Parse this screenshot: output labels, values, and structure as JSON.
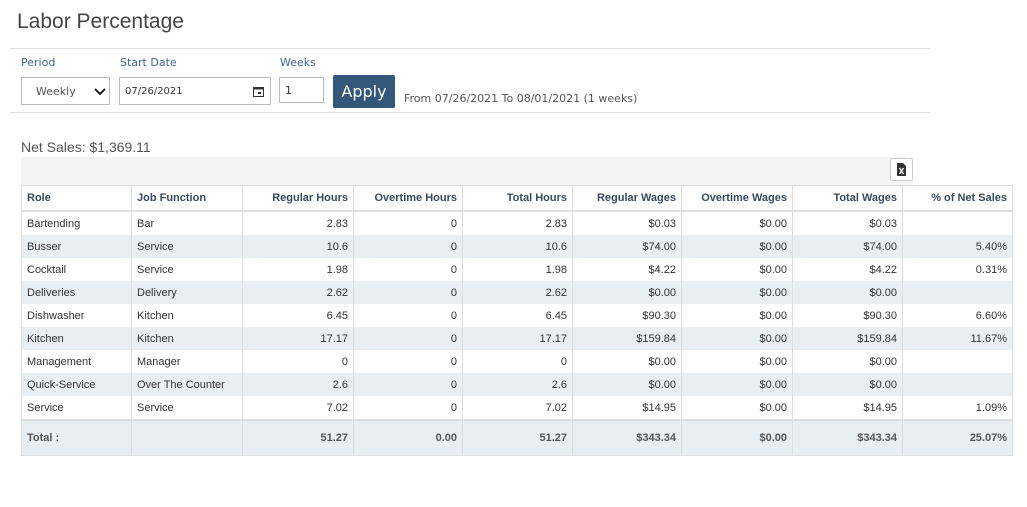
{
  "header": {
    "title": "Labor Percentage"
  },
  "filters": {
    "period_label": "Period",
    "period_value": "Weekly",
    "start_date_label": "Start Date",
    "start_date_value": "07/26/2021",
    "weeks_label": "Weeks",
    "weeks_value": "1",
    "apply_label": "Apply",
    "range_text": "From 07/26/2021 To 08/01/2021 (1 weeks)"
  },
  "net_sales": "Net Sales: $1,369.11",
  "table": {
    "columns": [
      "Role",
      "Job Function",
      "Regular Hours",
      "Overtime Hours",
      "Total Hours",
      "Regular Wages",
      "Overtime Wages",
      "Total Wages",
      "% of Net Sales"
    ],
    "rows": [
      [
        "Bartending",
        "Bar",
        "2.83",
        "0",
        "2.83",
        "$0.03",
        "$0.00",
        "$0.03",
        null
      ],
      [
        "Busser",
        "Service",
        "10.6",
        "0",
        "10.6",
        "$74.00",
        "$0.00",
        "$74.00",
        "5.40%"
      ],
      [
        "Cocktail",
        "Service",
        "1.98",
        "0",
        "1.98",
        "$4.22",
        "$0.00",
        "$4.22",
        "0.31%"
      ],
      [
        "Deliveries",
        "Delivery",
        "2.62",
        "0",
        "2.62",
        "$0.00",
        "$0.00",
        "$0.00",
        null
      ],
      [
        "Dishwasher",
        "Kitchen",
        "6.45",
        "0",
        "6.45",
        "$90.30",
        "$0.00",
        "$90.30",
        "6.60%"
      ],
      [
        "Kitchen",
        "Kitchen",
        "17.17",
        "0",
        "17.17",
        "$159.84",
        "$0.00",
        "$159.84",
        "11.67%"
      ],
      [
        "Management",
        "Manager",
        "0",
        "0",
        "0",
        "$0.00",
        "$0.00",
        "$0.00",
        null
      ],
      [
        "Quick-Service",
        "Over The Counter",
        "2.6",
        "0",
        "2.6",
        "$0.00",
        "$0.00",
        "$0.00",
        null
      ],
      [
        "Service",
        "Service",
        "7.02",
        "0",
        "7.02",
        "$14.95",
        "$0.00",
        "$14.95",
        "1.09%"
      ]
    ],
    "total": [
      "Total :",
      null,
      "51.27",
      "0.00",
      "51.27",
      "$343.34",
      "$0.00",
      "$343.34",
      "25.07%"
    ]
  }
}
